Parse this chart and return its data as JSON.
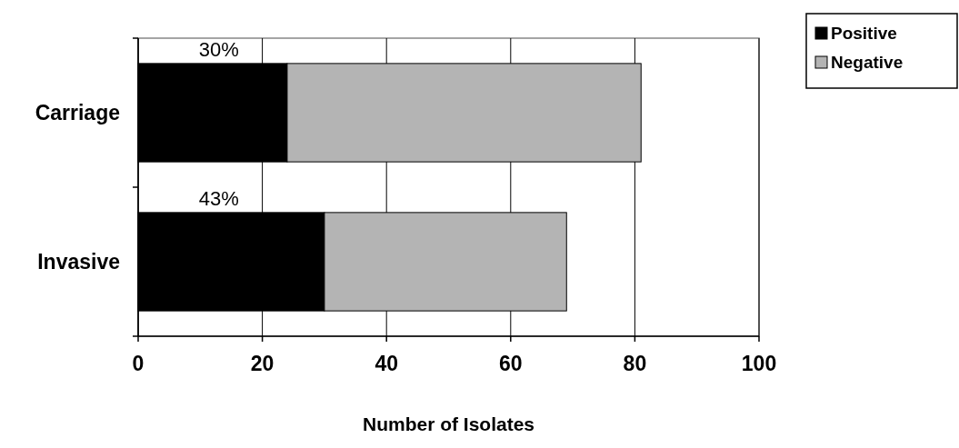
{
  "chart_data": {
    "type": "bar",
    "orientation": "horizontal",
    "stacked": true,
    "categories": [
      "Carriage",
      "Invasive"
    ],
    "series": [
      {
        "name": "Positive",
        "color": "#000000",
        "values": [
          24,
          30
        ]
      },
      {
        "name": "Negative",
        "color": "#b4b4b4",
        "values": [
          57,
          39
        ]
      }
    ],
    "annotations": [
      "30%",
      "43%"
    ],
    "xlabel": "Number of Isolates",
    "xlim": [
      0,
      100
    ],
    "xticks": [
      0,
      20,
      40,
      60,
      80,
      100
    ],
    "grid": "x",
    "legend": "top right"
  }
}
